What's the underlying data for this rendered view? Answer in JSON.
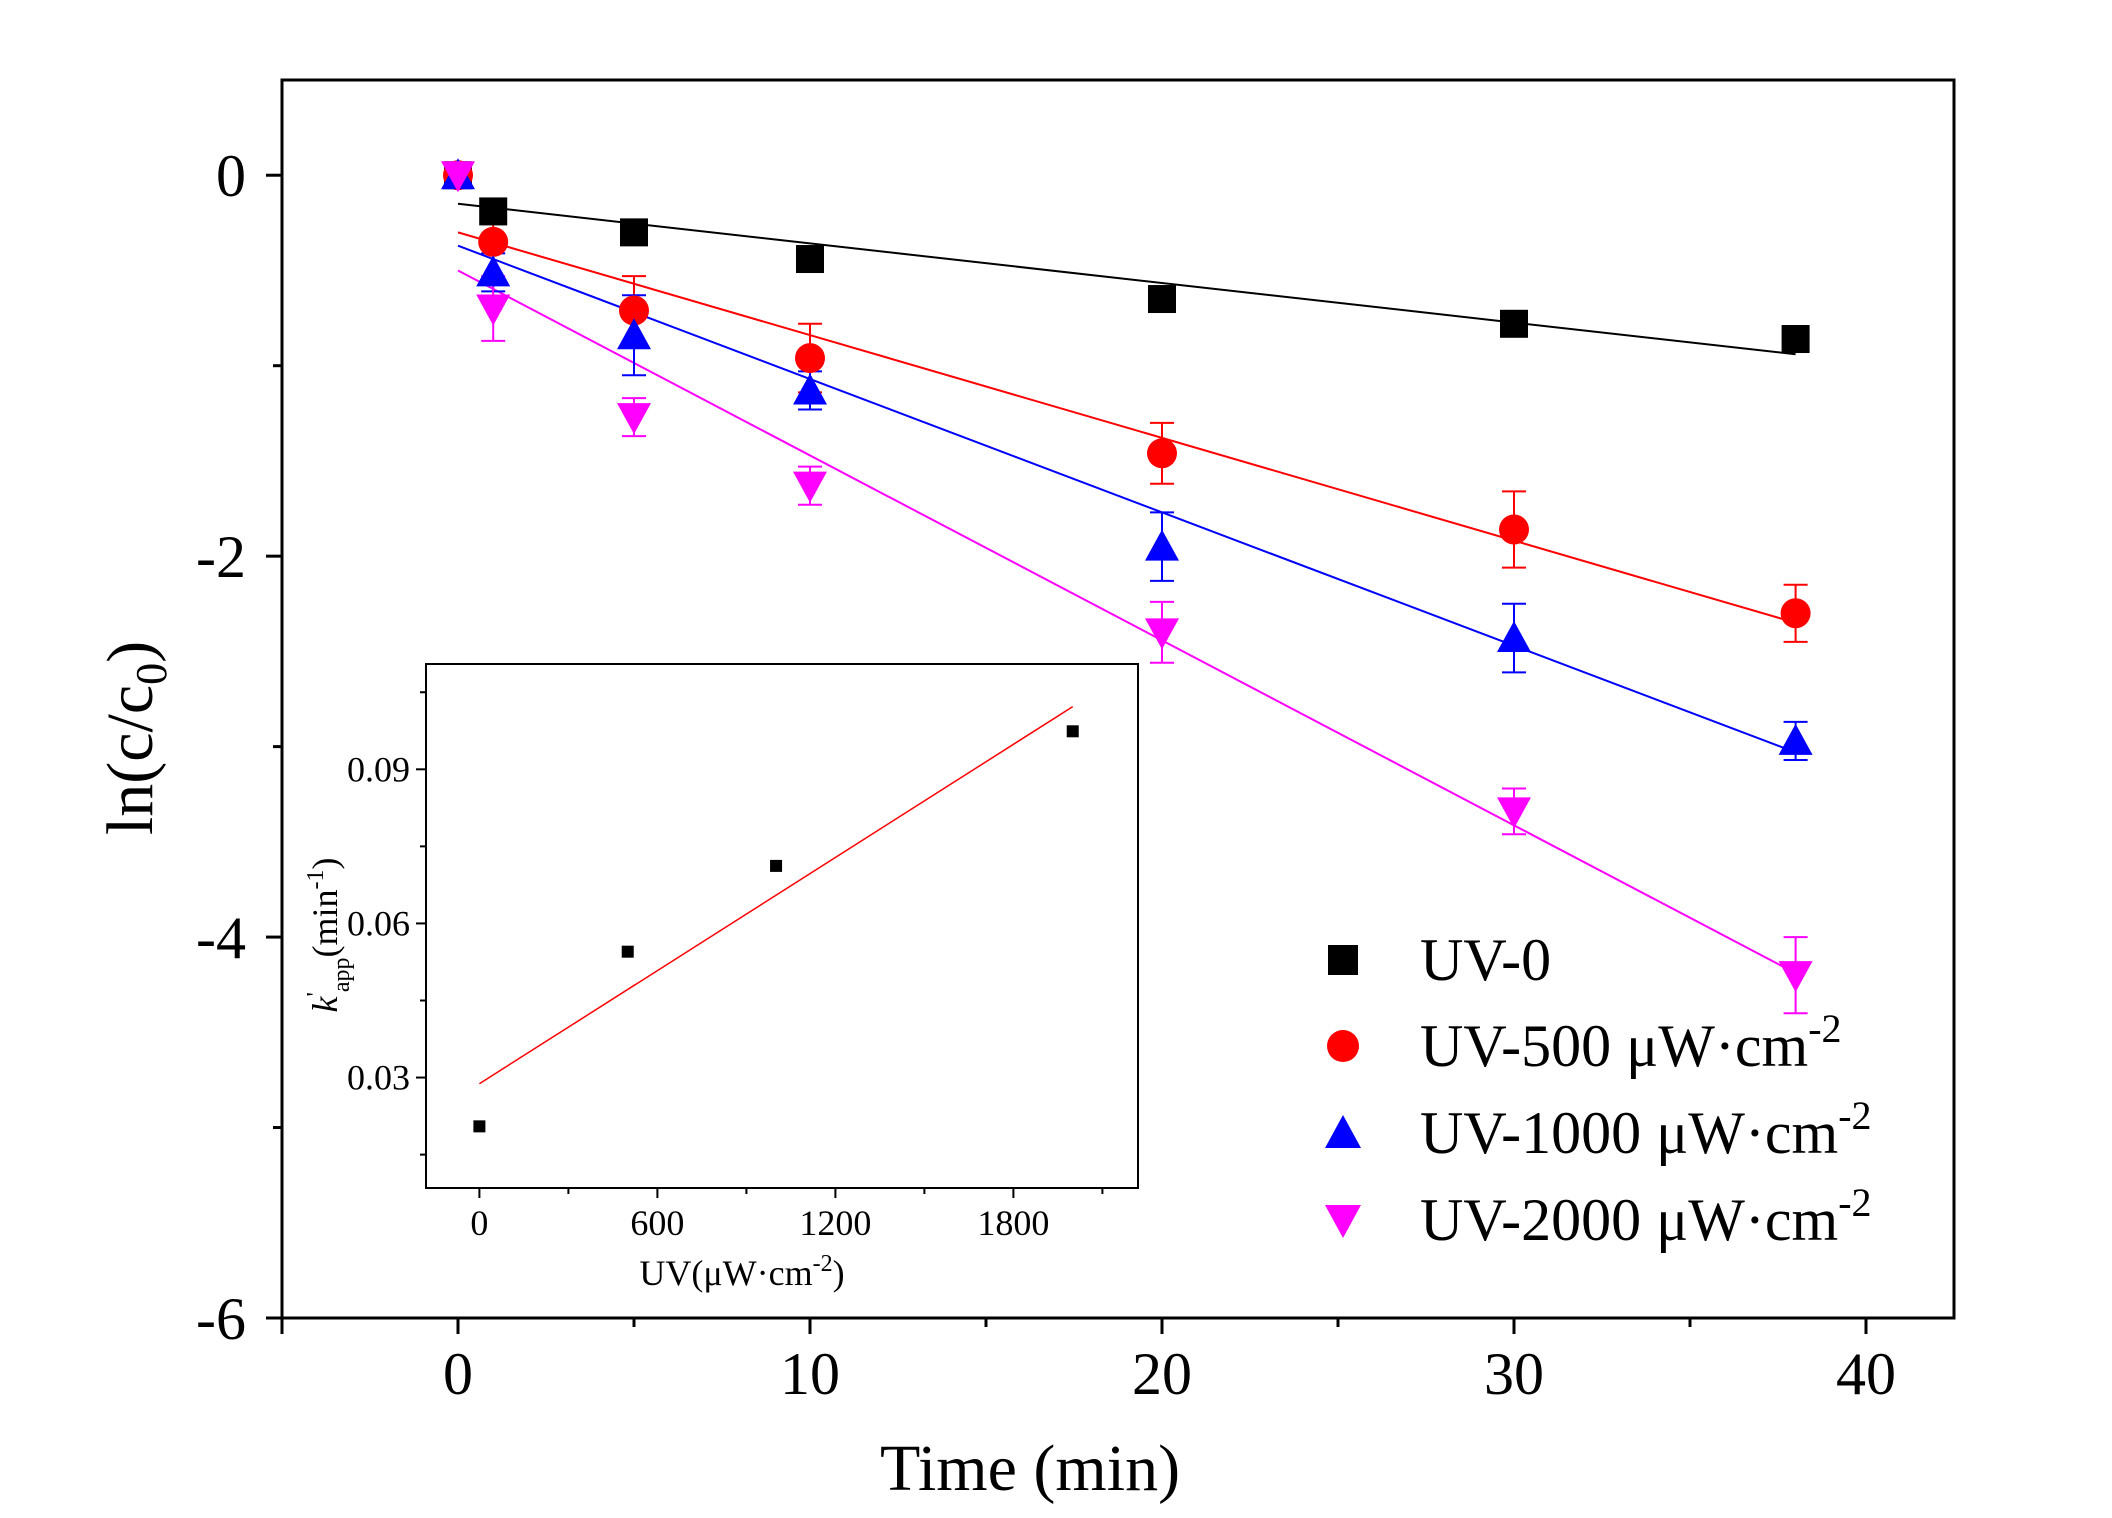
{
  "chart_data": {
    "main": {
      "type": "scatter",
      "xlabel": "Time (min)",
      "ylabel_base": "ln(c/c",
      "ylabel_sub": "0",
      "ylabel_tail": ")",
      "xlim": [
        -5,
        42.5
      ],
      "ylim": [
        -6,
        0.5
      ],
      "xticks": [
        0,
        10,
        20,
        30,
        40
      ],
      "xtick_labels": [
        "0",
        "10",
        "20",
        "30",
        "40"
      ],
      "xminor": [
        5,
        15,
        25,
        35
      ],
      "yticks": [
        0,
        -2,
        -4,
        -6
      ],
      "ytick_labels": [
        "0",
        "-2",
        "-4",
        "-6"
      ],
      "yminor": [
        -1,
        -3,
        -5
      ],
      "legend_position": "bottom-right",
      "series": [
        {
          "name": "UV-0",
          "label_base": "UV-0",
          "label_sup": "",
          "marker": "square",
          "color": "#000000",
          "x": [
            0,
            1,
            5,
            10,
            20,
            30,
            38
          ],
          "y": [
            0,
            -0.19,
            -0.3,
            -0.44,
            -0.65,
            -0.78,
            -0.86
          ],
          "err": [
            0,
            0.03,
            0.03,
            0.04,
            0.04,
            0.03,
            0.03
          ],
          "fit": {
            "x": [
              0,
              38
            ],
            "y": [
              -0.15,
              -0.94
            ]
          }
        },
        {
          "name": "UV-500 μW·cm-2",
          "label_base": "UV-500 μW·cm",
          "label_sup": "-2",
          "marker": "circle",
          "color": "#ff0000",
          "x": [
            0,
            1,
            5,
            10,
            20,
            30,
            38
          ],
          "y": [
            0,
            -0.35,
            -0.71,
            -0.96,
            -1.46,
            -1.86,
            -2.3
          ],
          "err": [
            0,
            0.22,
            0.18,
            0.18,
            0.16,
            0.2,
            0.15
          ],
          "fit": {
            "x": [
              0,
              38
            ],
            "y": [
              -0.3,
              -2.35
            ]
          }
        },
        {
          "name": "UV-1000 μW·cm-2",
          "label_base": "UV-1000 μW·cm",
          "label_sup": "-2",
          "marker": "triangle-up",
          "color": "#0000ff",
          "x": [
            0,
            1,
            5,
            10,
            20,
            30,
            38
          ],
          "y": [
            0,
            -0.51,
            -0.84,
            -1.13,
            -1.95,
            -2.43,
            -2.97
          ],
          "err": [
            0,
            0.1,
            0.21,
            0.1,
            0.18,
            0.18,
            0.1
          ],
          "fit": {
            "x": [
              0,
              38
            ],
            "y": [
              -0.37,
              -3.03
            ]
          }
        },
        {
          "name": "UV-2000 μW·cm-2",
          "label_base": "UV-2000 μW·cm",
          "label_sup": "-2",
          "marker": "triangle-down",
          "color": "#ff00ff",
          "x": [
            0,
            1,
            5,
            10,
            20,
            30,
            38
          ],
          "y": [
            0,
            -0.7,
            -1.27,
            -1.63,
            -2.4,
            -3.34,
            -4.2
          ],
          "err": [
            0,
            0.17,
            0.1,
            0.1,
            0.16,
            0.12,
            0.2
          ],
          "fit": {
            "x": [
              0,
              38
            ],
            "y": [
              -0.5,
              -4.19
            ]
          }
        }
      ]
    },
    "inset": {
      "type": "scatter",
      "xlabel_base": "UV(μW·cm",
      "xlabel_sup": "-2",
      "xlabel_tail": ")",
      "ylabel_k": "k",
      "ylabel_prime": "'",
      "ylabel_sub": "app",
      "ylabel_mid": "(min",
      "ylabel_sup": "-1",
      "ylabel_tail": ")",
      "xlim": [
        -180,
        2220
      ],
      "ylim": [
        0.0085,
        0.1105
      ],
      "xticks": [
        0,
        600,
        1200,
        1800
      ],
      "xtick_labels": [
        "0",
        "600",
        "1200",
        "1800"
      ],
      "xminor": [
        300,
        900,
        1500,
        2100
      ],
      "yticks": [
        0.03,
        0.06,
        0.09
      ],
      "ytick_labels": [
        "0.03",
        "0.06",
        "0.09"
      ],
      "yminor": [
        0.015,
        0.045,
        0.075,
        0.105
      ],
      "points": {
        "x": [
          0,
          500,
          1000,
          2000
        ],
        "y": [
          0.0205,
          0.0545,
          0.0712,
          0.0974
        ]
      },
      "fit": {
        "x": [
          0,
          2000
        ],
        "y": [
          0.0288,
          0.1022
        ]
      },
      "point_color": "#000000",
      "fit_color": "#ff0000"
    }
  }
}
